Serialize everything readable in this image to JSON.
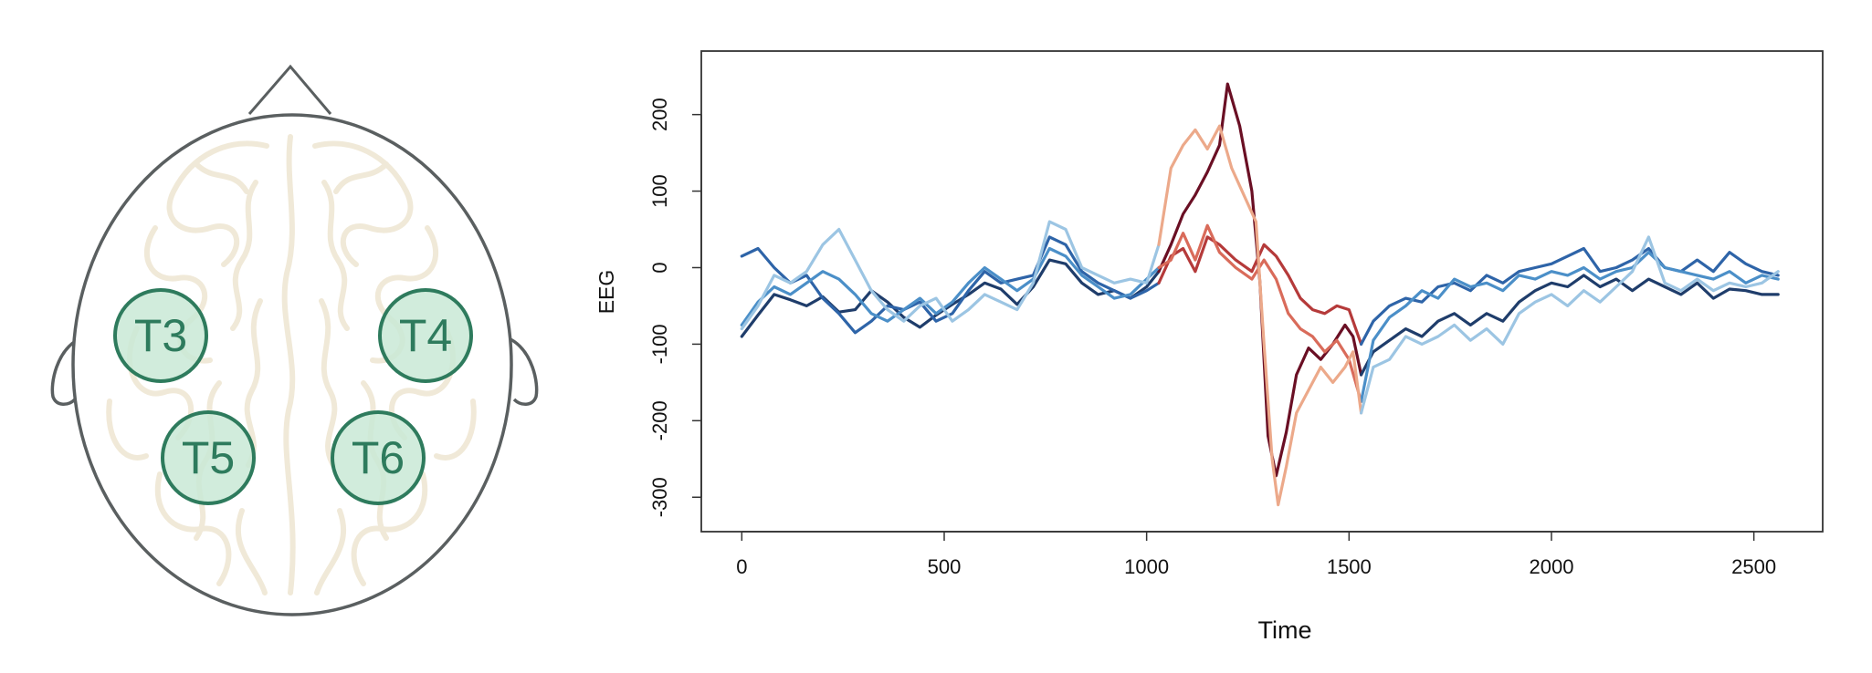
{
  "head_diagram": {
    "electrodes": [
      "T3",
      "T4",
      "T5",
      "T6"
    ],
    "colors": {
      "outline": "#5a5f60",
      "brain_folds": "#efe7d4",
      "electrode_fill": "#c9e9d6",
      "electrode_stroke": "#2e7b5d",
      "electrode_text": "#2e7b5d"
    }
  },
  "chart_data": {
    "type": "line",
    "xlabel": "Time",
    "ylabel": "EEG",
    "xlim": [
      -100,
      2670
    ],
    "ylim": [
      -345,
      283
    ],
    "x_ticks": [
      0,
      500,
      1000,
      1500,
      2000,
      2500
    ],
    "y_ticks": [
      -300,
      -200,
      -100,
      0,
      100,
      200
    ],
    "grid": false,
    "legend": "none",
    "highlight_window": [
      1030,
      1530
    ],
    "colors": {
      "outside_window": [
        "#1f3d6b",
        "#2e64a8",
        "#4b8fc8",
        "#9cc5e3"
      ],
      "inside_window": [
        "#6a0f24",
        "#b53a3a",
        "#d96b5a",
        "#eca98a"
      ]
    },
    "series": [
      {
        "points": [
          [
            0,
            -90
          ],
          [
            40,
            -62
          ],
          [
            80,
            -35
          ],
          [
            120,
            -42
          ],
          [
            160,
            -50
          ],
          [
            200,
            -38
          ],
          [
            240,
            -58
          ],
          [
            280,
            -55
          ],
          [
            320,
            -30
          ],
          [
            360,
            -45
          ],
          [
            400,
            -65
          ],
          [
            440,
            -78
          ],
          [
            480,
            -62
          ],
          [
            520,
            -48
          ],
          [
            560,
            -35
          ],
          [
            600,
            -20
          ],
          [
            640,
            -28
          ],
          [
            680,
            -48
          ],
          [
            720,
            -25
          ],
          [
            760,
            10
          ],
          [
            800,
            5
          ],
          [
            840,
            -20
          ],
          [
            880,
            -35
          ],
          [
            920,
            -30
          ],
          [
            960,
            -40
          ],
          [
            1000,
            -25
          ],
          [
            1030,
            -5
          ],
          [
            1060,
            30
          ],
          [
            1090,
            70
          ],
          [
            1120,
            95
          ],
          [
            1150,
            125
          ],
          [
            1180,
            160
          ],
          [
            1200,
            240
          ],
          [
            1230,
            185
          ],
          [
            1260,
            100
          ],
          [
            1280,
            -20
          ],
          [
            1300,
            -220
          ],
          [
            1320,
            -272
          ],
          [
            1345,
            -215
          ],
          [
            1370,
            -140
          ],
          [
            1400,
            -105
          ],
          [
            1430,
            -120
          ],
          [
            1460,
            -100
          ],
          [
            1490,
            -75
          ],
          [
            1510,
            -90
          ],
          [
            1530,
            -140
          ],
          [
            1560,
            -110
          ],
          [
            1600,
            -95
          ],
          [
            1640,
            -80
          ],
          [
            1680,
            -90
          ],
          [
            1720,
            -70
          ],
          [
            1760,
            -60
          ],
          [
            1800,
            -75
          ],
          [
            1840,
            -60
          ],
          [
            1880,
            -70
          ],
          [
            1920,
            -45
          ],
          [
            1960,
            -30
          ],
          [
            2000,
            -20
          ],
          [
            2040,
            -25
          ],
          [
            2080,
            -10
          ],
          [
            2120,
            -25
          ],
          [
            2160,
            -15
          ],
          [
            2200,
            -30
          ],
          [
            2240,
            -15
          ],
          [
            2280,
            -25
          ],
          [
            2320,
            -35
          ],
          [
            2360,
            -20
          ],
          [
            2400,
            -40
          ],
          [
            2440,
            -28
          ],
          [
            2480,
            -30
          ],
          [
            2520,
            -35
          ],
          [
            2560,
            -35
          ]
        ]
      },
      {
        "points": [
          [
            0,
            15
          ],
          [
            40,
            25
          ],
          [
            80,
            0
          ],
          [
            120,
            -20
          ],
          [
            160,
            -10
          ],
          [
            200,
            -40
          ],
          [
            240,
            -60
          ],
          [
            280,
            -85
          ],
          [
            320,
            -70
          ],
          [
            360,
            -50
          ],
          [
            400,
            -55
          ],
          [
            440,
            -45
          ],
          [
            480,
            -70
          ],
          [
            520,
            -60
          ],
          [
            560,
            -30
          ],
          [
            600,
            -5
          ],
          [
            640,
            -20
          ],
          [
            680,
            -15
          ],
          [
            720,
            -10
          ],
          [
            760,
            40
          ],
          [
            800,
            30
          ],
          [
            840,
            -5
          ],
          [
            880,
            -20
          ],
          [
            920,
            -30
          ],
          [
            960,
            -40
          ],
          [
            1000,
            -30
          ],
          [
            1030,
            -20
          ],
          [
            1060,
            15
          ],
          [
            1090,
            25
          ],
          [
            1120,
            -5
          ],
          [
            1150,
            40
          ],
          [
            1180,
            30
          ],
          [
            1220,
            10
          ],
          [
            1260,
            -5
          ],
          [
            1290,
            30
          ],
          [
            1320,
            15
          ],
          [
            1350,
            -10
          ],
          [
            1380,
            -40
          ],
          [
            1410,
            -55
          ],
          [
            1440,
            -60
          ],
          [
            1470,
            -50
          ],
          [
            1500,
            -55
          ],
          [
            1530,
            -100
          ],
          [
            1560,
            -70
          ],
          [
            1600,
            -50
          ],
          [
            1640,
            -40
          ],
          [
            1680,
            -45
          ],
          [
            1720,
            -25
          ],
          [
            1760,
            -20
          ],
          [
            1800,
            -30
          ],
          [
            1840,
            -10
          ],
          [
            1880,
            -20
          ],
          [
            1920,
            -5
          ],
          [
            1960,
            0
          ],
          [
            2000,
            5
          ],
          [
            2040,
            15
          ],
          [
            2080,
            25
          ],
          [
            2120,
            -5
          ],
          [
            2160,
            0
          ],
          [
            2200,
            10
          ],
          [
            2240,
            25
          ],
          [
            2280,
            0
          ],
          [
            2320,
            -5
          ],
          [
            2360,
            10
          ],
          [
            2400,
            -5
          ],
          [
            2440,
            20
          ],
          [
            2480,
            5
          ],
          [
            2520,
            -5
          ],
          [
            2560,
            -10
          ]
        ]
      },
      {
        "points": [
          [
            0,
            -75
          ],
          [
            40,
            -45
          ],
          [
            80,
            -25
          ],
          [
            120,
            -35
          ],
          [
            160,
            -20
          ],
          [
            200,
            -5
          ],
          [
            240,
            -15
          ],
          [
            280,
            -35
          ],
          [
            320,
            -60
          ],
          [
            360,
            -70
          ],
          [
            400,
            -55
          ],
          [
            440,
            -40
          ],
          [
            480,
            -60
          ],
          [
            520,
            -45
          ],
          [
            560,
            -20
          ],
          [
            600,
            0
          ],
          [
            640,
            -15
          ],
          [
            680,
            -30
          ],
          [
            720,
            -15
          ],
          [
            760,
            25
          ],
          [
            800,
            15
          ],
          [
            840,
            -10
          ],
          [
            880,
            -25
          ],
          [
            920,
            -40
          ],
          [
            960,
            -35
          ],
          [
            1000,
            -15
          ],
          [
            1030,
            0
          ],
          [
            1060,
            10
          ],
          [
            1090,
            45
          ],
          [
            1120,
            10
          ],
          [
            1150,
            55
          ],
          [
            1180,
            20
          ],
          [
            1220,
            0
          ],
          [
            1260,
            -15
          ],
          [
            1290,
            10
          ],
          [
            1320,
            -15
          ],
          [
            1350,
            -60
          ],
          [
            1380,
            -80
          ],
          [
            1410,
            -90
          ],
          [
            1440,
            -110
          ],
          [
            1470,
            -95
          ],
          [
            1500,
            -120
          ],
          [
            1530,
            -175
          ],
          [
            1560,
            -95
          ],
          [
            1600,
            -65
          ],
          [
            1640,
            -50
          ],
          [
            1680,
            -30
          ],
          [
            1720,
            -40
          ],
          [
            1760,
            -15
          ],
          [
            1800,
            -25
          ],
          [
            1840,
            -20
          ],
          [
            1880,
            -30
          ],
          [
            1920,
            -10
          ],
          [
            1960,
            -15
          ],
          [
            2000,
            -5
          ],
          [
            2040,
            -10
          ],
          [
            2080,
            0
          ],
          [
            2120,
            -15
          ],
          [
            2160,
            -5
          ],
          [
            2200,
            0
          ],
          [
            2240,
            20
          ],
          [
            2280,
            0
          ],
          [
            2320,
            -5
          ],
          [
            2360,
            -10
          ],
          [
            2400,
            -15
          ],
          [
            2440,
            -5
          ],
          [
            2480,
            -20
          ],
          [
            2520,
            -10
          ],
          [
            2560,
            -15
          ]
        ]
      },
      {
        "points": [
          [
            0,
            -80
          ],
          [
            40,
            -50
          ],
          [
            80,
            -10
          ],
          [
            120,
            -20
          ],
          [
            160,
            -5
          ],
          [
            200,
            30
          ],
          [
            240,
            50
          ],
          [
            280,
            10
          ],
          [
            320,
            -30
          ],
          [
            360,
            -55
          ],
          [
            400,
            -70
          ],
          [
            440,
            -50
          ],
          [
            480,
            -40
          ],
          [
            520,
            -70
          ],
          [
            560,
            -55
          ],
          [
            600,
            -35
          ],
          [
            640,
            -45
          ],
          [
            680,
            -55
          ],
          [
            720,
            -20
          ],
          [
            760,
            60
          ],
          [
            800,
            50
          ],
          [
            840,
            0
          ],
          [
            880,
            -10
          ],
          [
            920,
            -20
          ],
          [
            960,
            -15
          ],
          [
            1000,
            -20
          ],
          [
            1030,
            30
          ],
          [
            1060,
            130
          ],
          [
            1090,
            160
          ],
          [
            1120,
            180
          ],
          [
            1150,
            155
          ],
          [
            1180,
            185
          ],
          [
            1210,
            130
          ],
          [
            1240,
            95
          ],
          [
            1270,
            60
          ],
          [
            1290,
            -100
          ],
          [
            1310,
            -250
          ],
          [
            1325,
            -310
          ],
          [
            1345,
            -260
          ],
          [
            1370,
            -190
          ],
          [
            1400,
            -160
          ],
          [
            1430,
            -130
          ],
          [
            1460,
            -150
          ],
          [
            1490,
            -130
          ],
          [
            1510,
            -110
          ],
          [
            1530,
            -190
          ],
          [
            1560,
            -130
          ],
          [
            1600,
            -120
          ],
          [
            1640,
            -90
          ],
          [
            1680,
            -100
          ],
          [
            1720,
            -90
          ],
          [
            1760,
            -75
          ],
          [
            1800,
            -95
          ],
          [
            1840,
            -80
          ],
          [
            1880,
            -100
          ],
          [
            1920,
            -60
          ],
          [
            1960,
            -45
          ],
          [
            2000,
            -35
          ],
          [
            2040,
            -50
          ],
          [
            2080,
            -30
          ],
          [
            2120,
            -45
          ],
          [
            2160,
            -25
          ],
          [
            2200,
            -5
          ],
          [
            2240,
            40
          ],
          [
            2280,
            -20
          ],
          [
            2320,
            -30
          ],
          [
            2360,
            -15
          ],
          [
            2400,
            -30
          ],
          [
            2440,
            -20
          ],
          [
            2480,
            -25
          ],
          [
            2520,
            -20
          ],
          [
            2560,
            -5
          ]
        ]
      }
    ]
  }
}
